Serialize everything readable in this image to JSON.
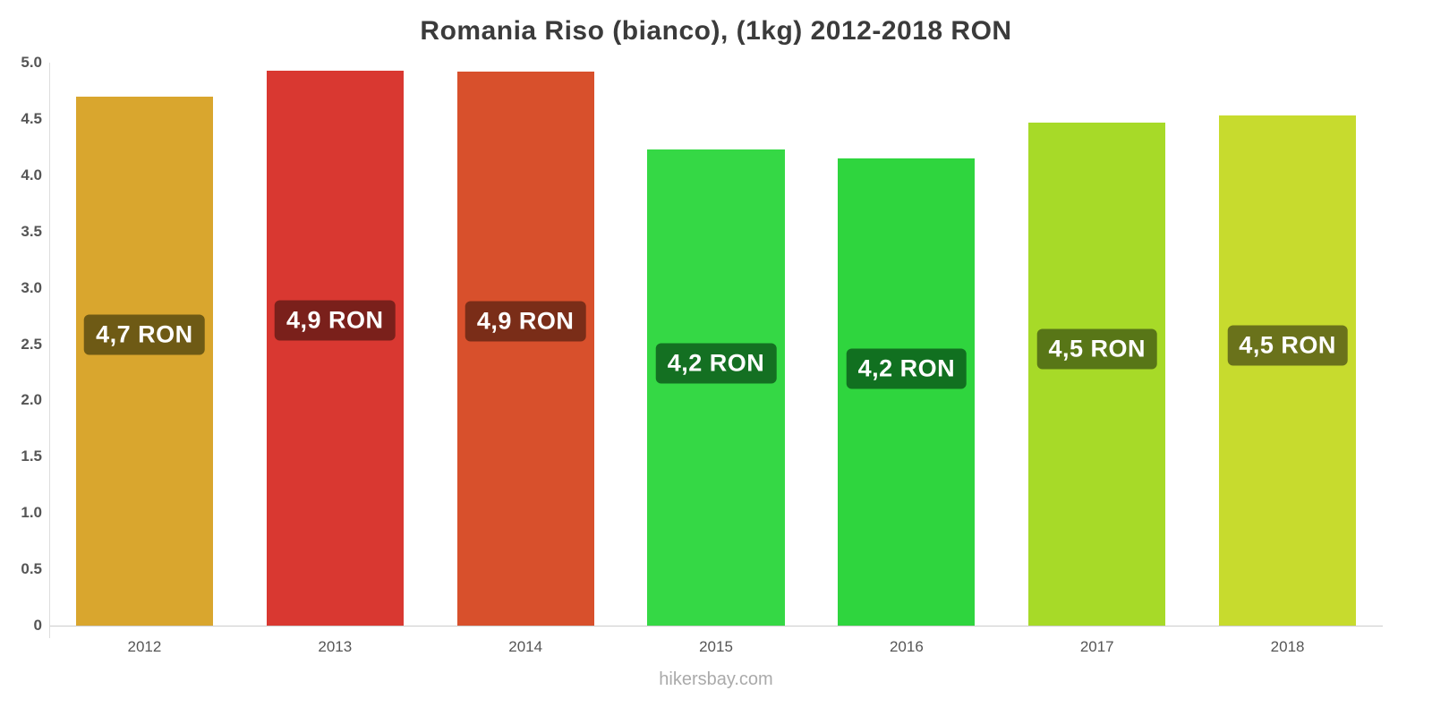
{
  "title": "Romania Riso (bianco), (1kg) 2012-2018 RON",
  "footer": "hikersbay.com",
  "chart_data": {
    "type": "bar",
    "categories": [
      "2012",
      "2013",
      "2014",
      "2015",
      "2016",
      "2017",
      "2018"
    ],
    "values": [
      4.7,
      4.93,
      4.92,
      4.23,
      4.15,
      4.47,
      4.53
    ],
    "bar_labels": [
      "4,7 RON",
      "4,9 RON",
      "4,9 RON",
      "4,2 RON",
      "4,2 RON",
      "4,5 RON",
      "4,5 RON"
    ],
    "bar_colors": [
      "#D9A62E",
      "#D93831",
      "#D8502C",
      "#35D845",
      "#2FD53E",
      "#A7DA28",
      "#C7DB2E"
    ],
    "label_bg_colors": [
      "#6E5A15",
      "#7A201B",
      "#7A2D18",
      "#147022",
      "#117020",
      "#587617",
      "#6A721B"
    ],
    "title": "Romania Riso (bianco), (1kg) 2012-2018 RON",
    "xlabel": "",
    "ylabel": "",
    "ylim": [
      0,
      5
    ],
    "yticks": [
      "5.0",
      "4.5",
      "4.0",
      "3.5",
      "3.0",
      "2.5",
      "2.0",
      "1.5",
      "1.0",
      "0.5",
      "0"
    ],
    "grid": false,
    "legend": false
  }
}
